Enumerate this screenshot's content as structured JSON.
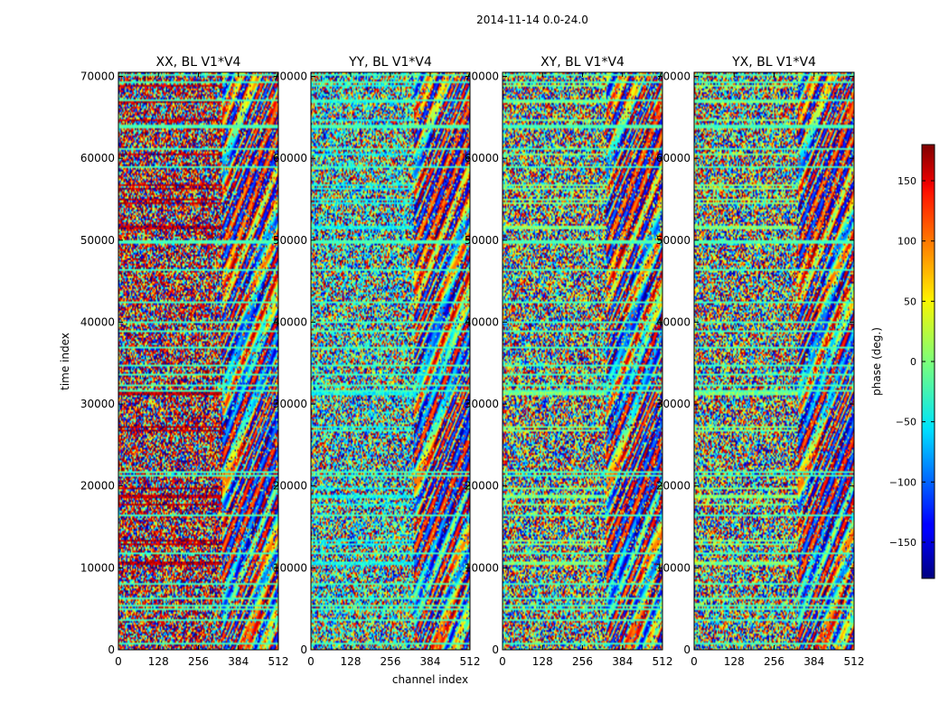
{
  "figure": {
    "suptitle": "2014-11-14 0.0-24.0",
    "xlabel": "channel index",
    "ylabel": "time index"
  },
  "chart_data": {
    "type": "heatmap",
    "title": "2014-11-14 0.0-24.0",
    "xlabel": "channel index",
    "ylabel": "time index",
    "xlim": [
      0,
      512
    ],
    "ylim": [
      0,
      70500
    ],
    "xticks": [
      0,
      128,
      256,
      384,
      512
    ],
    "yticks": [
      0,
      10000,
      20000,
      30000,
      40000,
      50000,
      60000,
      70000
    ],
    "panels": [
      {
        "name": "XX, BL V1*V4",
        "bias": 160,
        "biasStrength": 0.75
      },
      {
        "name": "YY, BL V1*V4",
        "bias": -40,
        "biasStrength": 0.55
      },
      {
        "name": "XY, BL V1*V4",
        "bias": 0,
        "biasStrength": 0.12
      },
      {
        "name": "YX, BL V1*V4",
        "bias": 0,
        "biasStrength": 0.12
      }
    ],
    "colorbar": {
      "label": "phase (deg.)",
      "vmin": -180,
      "vmax": 180,
      "ticks": [
        -150,
        -100,
        -50,
        0,
        50,
        100,
        150
      ],
      "colormap": "jet"
    }
  }
}
